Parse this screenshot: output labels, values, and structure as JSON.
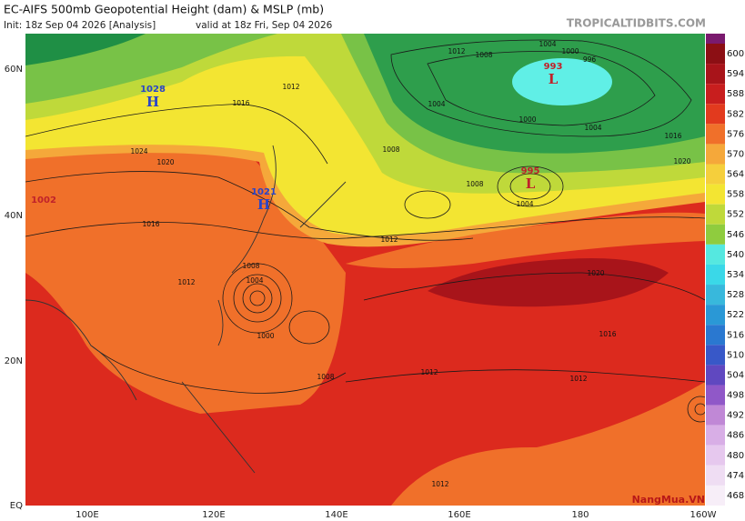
{
  "header": {
    "title": "EC-AIFS 500mb Geopotential Height (dam) & MSLP (mb)",
    "init": "Init: 18z Sep 04 2026   [Analysis]",
    "valid": "valid at 18z Fri, Sep 04 2026",
    "site": "TROPICALTIDBITS.COM"
  },
  "map": {
    "lat_labels": [
      "60N",
      "40N",
      "20N",
      "EQ"
    ],
    "lon_labels": [
      "100E",
      "120E",
      "140E",
      "160E",
      "180",
      "160W"
    ],
    "pressure_centers": [
      {
        "value": 1028,
        "letter": "H"
      },
      {
        "value": 1021,
        "letter": "H"
      },
      {
        "value": 993,
        "letter": "L"
      },
      {
        "value": 995,
        "letter": "L"
      },
      {
        "value": 1002
      }
    ],
    "contour_labels": [
      1012,
      1016,
      1020,
      1024,
      1008,
      1004,
      1000,
      1004,
      1016,
      1020,
      1008,
      1004,
      1012,
      1020,
      1016,
      1012,
      1012,
      1008,
      1000,
      1004,
      1008,
      1012,
      1016,
      1012,
      1004,
      1000,
      996,
      1008,
      1012
    ]
  },
  "colorbar": {
    "labels": [
      600,
      594,
      588,
      582,
      576,
      570,
      564,
      558,
      552,
      546,
      540,
      534,
      528,
      522,
      516,
      510,
      504,
      498,
      492,
      486,
      480,
      474,
      468
    ]
  },
  "watermark": "NangMua.VN"
}
